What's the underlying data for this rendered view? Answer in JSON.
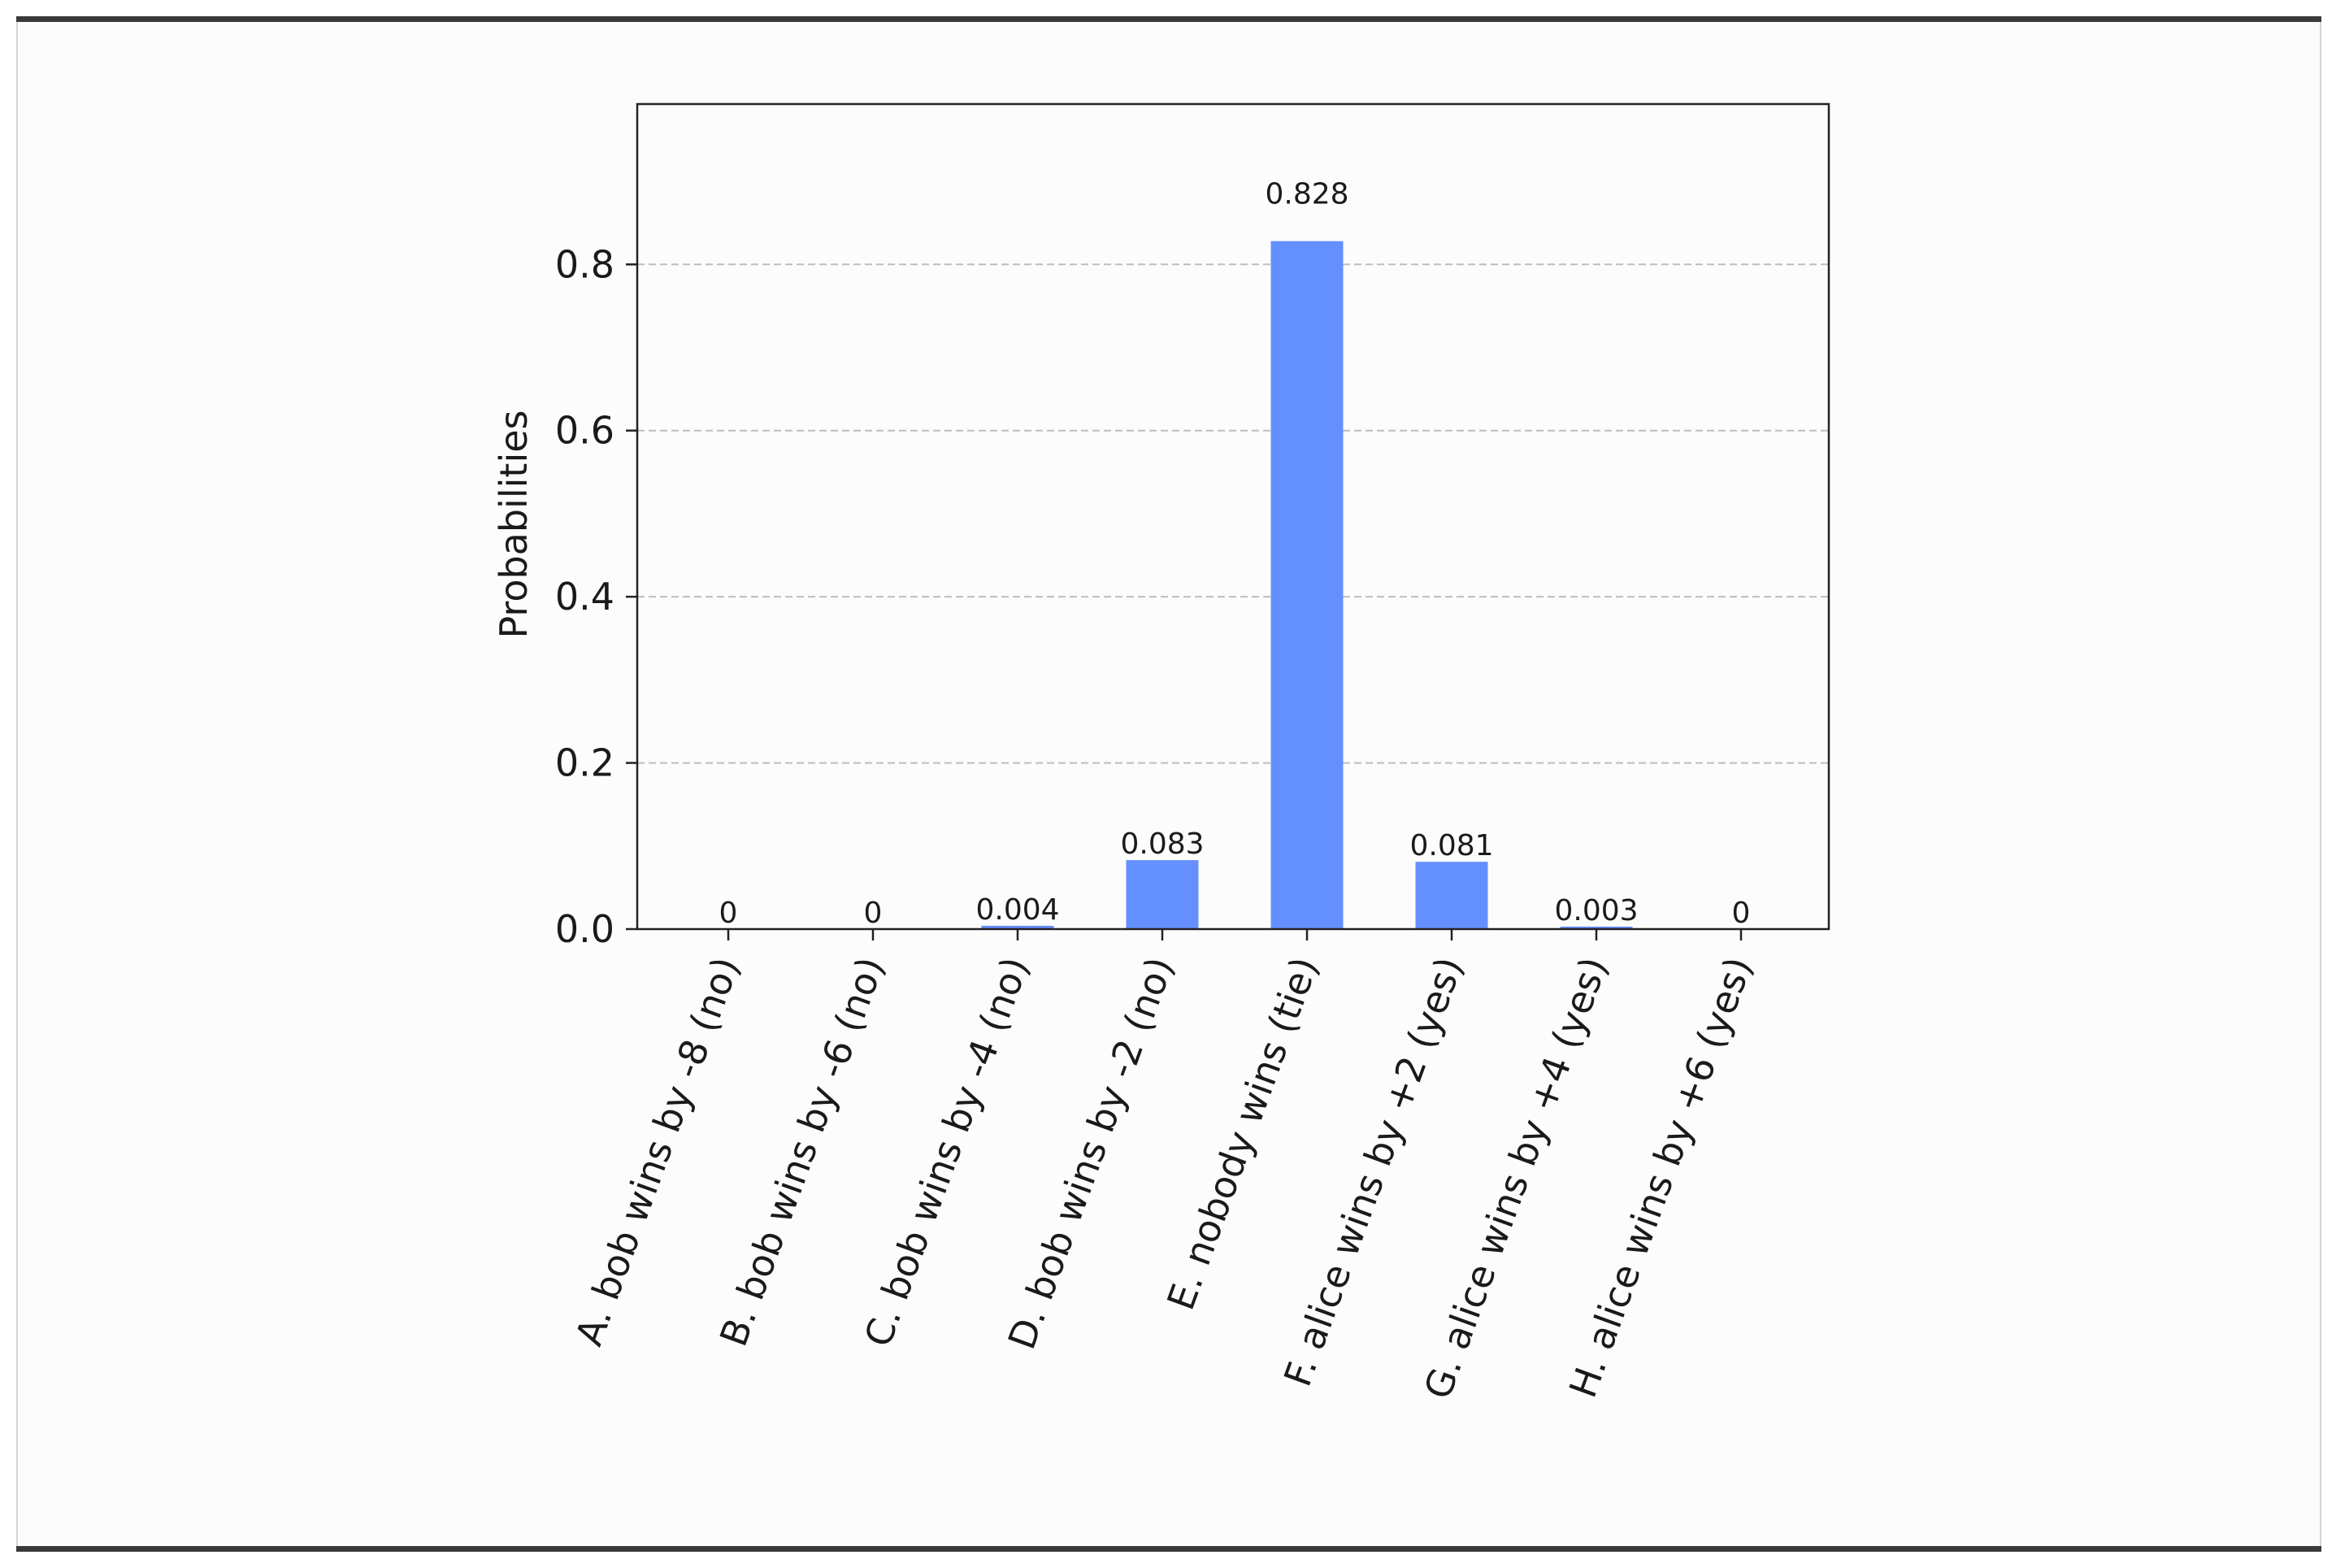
{
  "chart_data": {
    "type": "bar",
    "categories": [
      "A. bob wins by -8 (no)",
      "B. bob wins by -6 (no)",
      "C. bob wins by -4 (no)",
      "D. bob wins by -2 (no)",
      "E. nobody wins (tie)",
      "F. alice wins by +2 (yes)",
      "G. alice wins by +4 (yes)",
      "H. alice wins by +6 (yes)"
    ],
    "values": [
      0,
      0,
      0.004,
      0.083,
      0.828,
      0.081,
      0.003,
      0
    ],
    "value_labels": [
      "0",
      "0",
      "0.004",
      "0.083",
      "0.828",
      "0.081",
      "0.003",
      "0"
    ],
    "title": "",
    "xlabel": "",
    "ylabel": "Probabilities",
    "ylim": [
      0,
      0.993
    ],
    "yticks": [
      0.0,
      0.2,
      0.4,
      0.6,
      0.8
    ],
    "ytick_labels": [
      "0.0",
      "0.2",
      "0.4",
      "0.6",
      "0.8"
    ],
    "grid": "horizontal dashed",
    "bar_color": "#648fff",
    "grid_color": "#bdbdbd"
  }
}
